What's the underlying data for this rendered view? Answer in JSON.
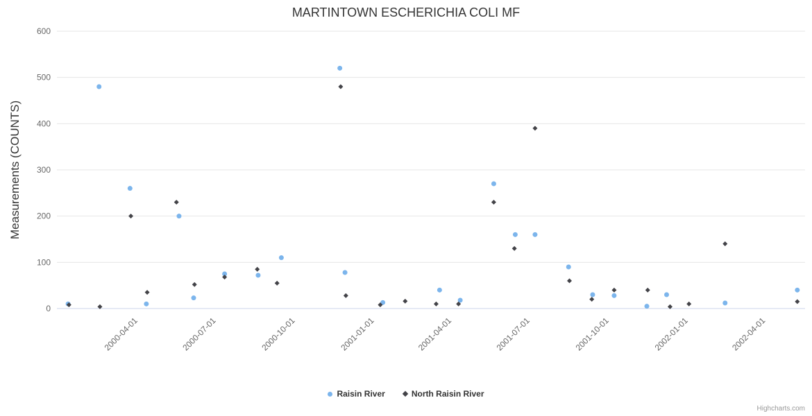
{
  "credits": "Highcharts.com",
  "chart_data": {
    "type": "scatter",
    "title": "MARTINTOWN ESCHERICHIA COLI MF",
    "xlabel": "",
    "ylabel": "Measurements (COUNTS)",
    "ylim": [
      0,
      600
    ],
    "y_ticks": [
      0,
      100,
      200,
      300,
      400,
      500,
      600
    ],
    "x_range": [
      "2000-01-01",
      "2002-05-20"
    ],
    "x_tick_labels": [
      "2000-04-01",
      "2000-07-01",
      "2000-10-01",
      "2001-01-01",
      "2001-04-01",
      "2001-07-01",
      "2001-10-01",
      "2002-01-01",
      "2002-04-01"
    ],
    "grid": true,
    "legend_position": "bottom",
    "series": [
      {
        "name": "Raisin River",
        "color": "#7cb5ec",
        "marker": "circle",
        "points": [
          [
            "2000-01-14",
            10
          ],
          [
            "2000-02-19",
            480
          ],
          [
            "2000-03-26",
            260
          ],
          [
            "2000-04-14",
            10
          ],
          [
            "2000-05-22",
            200
          ],
          [
            "2000-06-08",
            23
          ],
          [
            "2000-07-14",
            75
          ],
          [
            "2000-08-22",
            72
          ],
          [
            "2000-09-18",
            110
          ],
          [
            "2000-11-25",
            520
          ],
          [
            "2000-12-01",
            78
          ],
          [
            "2001-01-14",
            13
          ],
          [
            "2001-03-21",
            40
          ],
          [
            "2001-04-14",
            18
          ],
          [
            "2001-05-23",
            270
          ],
          [
            "2001-06-17",
            160
          ],
          [
            "2001-07-10",
            160
          ],
          [
            "2001-08-18",
            90
          ],
          [
            "2001-09-15",
            30
          ],
          [
            "2001-10-10",
            28
          ],
          [
            "2001-11-17",
            5
          ],
          [
            "2001-12-10",
            30
          ],
          [
            "2002-02-16",
            12
          ],
          [
            "2002-05-11",
            40
          ]
        ]
      },
      {
        "name": "North Raisin River",
        "color": "#434348",
        "marker": "diamond",
        "points": [
          [
            "2000-01-15",
            8
          ],
          [
            "2000-02-20",
            4
          ],
          [
            "2000-03-27",
            200
          ],
          [
            "2000-04-15",
            35
          ],
          [
            "2000-05-19",
            230
          ],
          [
            "2000-06-09",
            52
          ],
          [
            "2000-07-14",
            68
          ],
          [
            "2000-08-21",
            85
          ],
          [
            "2000-09-13",
            55
          ],
          [
            "2000-11-26",
            480
          ],
          [
            "2000-12-02",
            28
          ],
          [
            "2001-01-11",
            8
          ],
          [
            "2001-02-09",
            16
          ],
          [
            "2001-03-17",
            10
          ],
          [
            "2001-04-12",
            10
          ],
          [
            "2001-05-23",
            230
          ],
          [
            "2001-06-16",
            130
          ],
          [
            "2001-07-10",
            390
          ],
          [
            "2001-08-19",
            60
          ],
          [
            "2001-09-14",
            20
          ],
          [
            "2001-10-10",
            40
          ],
          [
            "2001-11-18",
            40
          ],
          [
            "2001-12-14",
            4
          ],
          [
            "2002-01-05",
            10
          ],
          [
            "2002-02-16",
            140
          ],
          [
            "2002-05-11",
            15
          ]
        ]
      }
    ]
  }
}
